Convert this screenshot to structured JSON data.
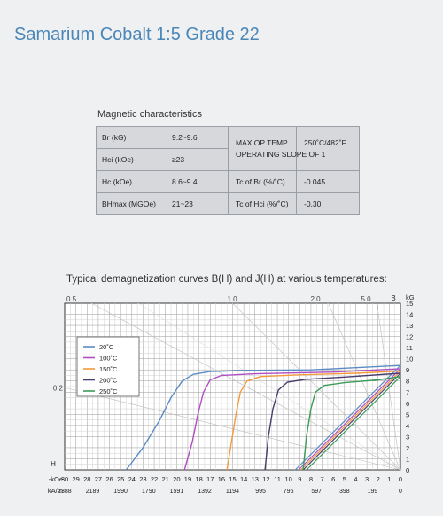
{
  "page": {
    "title": "Samarium Cobalt 1:5 Grade 22",
    "magnetic_heading": "Magnetic characteristics",
    "chart_title": "Typical demagnetization curves B(H) and J(H) at various temperatures:"
  },
  "table": {
    "left_rows": [
      {
        "label": "Br (kG)",
        "value": "9.2~9.6"
      },
      {
        "label": "Hci (kOe)",
        "value": "≥23"
      },
      {
        "label": "Hc (kOe)",
        "value": "8.6~9.4"
      },
      {
        "label": "BHmax (MGOe)",
        "value": "21~23"
      }
    ],
    "max_op_temp_label": "MAX OP TEMP",
    "max_op_temp_value": "250˚C/482˚F",
    "operating_slope": "OPERATING SLOPE OF 1",
    "right_rows": [
      {
        "label": "Tc of Br (%/˚C)",
        "value": "-0.045"
      },
      {
        "label": "Tc of Hci (%/˚C)",
        "value": "-0.30"
      }
    ]
  },
  "chart_data": {
    "type": "line",
    "title": "Typical demagnetization curves B(H) and J(H) at various temperatures:",
    "xlabel": "H",
    "ylabel": "B",
    "x_unit_labels": [
      "-kOe",
      "kA/m"
    ],
    "y_unit_label": "kG",
    "xlim": [
      30,
      0
    ],
    "ylim": [
      0,
      15
    ],
    "x_ticks_koe": [
      "30",
      "29",
      "28",
      "27",
      "26",
      "25",
      "24",
      "23",
      "22",
      "21",
      "20",
      "19",
      "18",
      "17",
      "16",
      "15",
      "14",
      "13",
      "12",
      "11",
      "10",
      "9",
      "8",
      "7",
      "6",
      "5",
      "4",
      "3",
      "2",
      "1",
      "0"
    ],
    "x_ticks_kam": [
      "2388",
      "2189",
      "1990",
      "1790",
      "1591",
      "1392",
      "1194",
      "995",
      "796",
      "597",
      "398",
      "199",
      "0"
    ],
    "y_ticks": [
      "0",
      "1",
      "2",
      "3",
      "4",
      "5",
      "6",
      "7",
      "8",
      "9",
      "10",
      "11",
      "12",
      "13",
      "14",
      "15"
    ],
    "load_line_labels": [
      "0.5",
      "1.0",
      "2.0",
      "5.0",
      "0.2"
    ],
    "grid": true,
    "legend_position": "upper-left",
    "series": [
      {
        "name": "20˚C",
        "color": "#5b8bc4",
        "j_curve": [
          [
            24.5,
            0
          ],
          [
            23,
            2
          ],
          [
            21.5,
            4.5
          ],
          [
            20.5,
            6.5
          ],
          [
            19.5,
            8
          ],
          [
            18.5,
            8.6
          ],
          [
            17,
            8.85
          ],
          [
            14,
            8.95
          ],
          [
            8,
            9
          ],
          [
            0,
            9.4
          ]
        ],
        "b_line": [
          [
            0,
            9.4
          ],
          [
            9.4,
            0
          ]
        ]
      },
      {
        "name": "100˚C",
        "color": "#b04fc4",
        "j_curve": [
          [
            19.3,
            0
          ],
          [
            18.6,
            2.5
          ],
          [
            18.1,
            5
          ],
          [
            17.6,
            7
          ],
          [
            17,
            8.1
          ],
          [
            16,
            8.5
          ],
          [
            13,
            8.65
          ],
          [
            6,
            8.8
          ],
          [
            0,
            9.1
          ]
        ],
        "b_line": [
          [
            0,
            9.1
          ],
          [
            9.1,
            0
          ]
        ]
      },
      {
        "name": "150˚C",
        "color": "#f39a3c",
        "j_curve": [
          [
            15.5,
            0
          ],
          [
            15.1,
            2.5
          ],
          [
            14.7,
            5
          ],
          [
            14.3,
            7
          ],
          [
            13.7,
            8
          ],
          [
            12.5,
            8.4
          ],
          [
            9,
            8.55
          ],
          [
            4,
            8.7
          ],
          [
            0,
            8.9
          ]
        ],
        "b_line": [
          [
            0,
            8.9
          ],
          [
            8.9,
            0
          ]
        ]
      },
      {
        "name": "200˚C",
        "color": "#4a3d6e",
        "j_curve": [
          [
            12.1,
            0
          ],
          [
            11.8,
            3
          ],
          [
            11.4,
            5.5
          ],
          [
            10.9,
            7.2
          ],
          [
            10.1,
            7.9
          ],
          [
            8.5,
            8.15
          ],
          [
            5,
            8.35
          ],
          [
            0,
            8.7
          ]
        ],
        "b_line": [
          [
            0,
            8.7
          ],
          [
            8.7,
            0
          ]
        ]
      },
      {
        "name": "250˚C",
        "color": "#3a9b58",
        "j_curve": [
          [
            8.7,
            0
          ],
          [
            8.4,
            3
          ],
          [
            8,
            5.5
          ],
          [
            7.6,
            7
          ],
          [
            6.8,
            7.6
          ],
          [
            5,
            7.85
          ],
          [
            2,
            8.1
          ],
          [
            0,
            8.4
          ]
        ],
        "b_line": [
          [
            0,
            8.4
          ],
          [
            8.4,
            0
          ]
        ]
      }
    ]
  }
}
